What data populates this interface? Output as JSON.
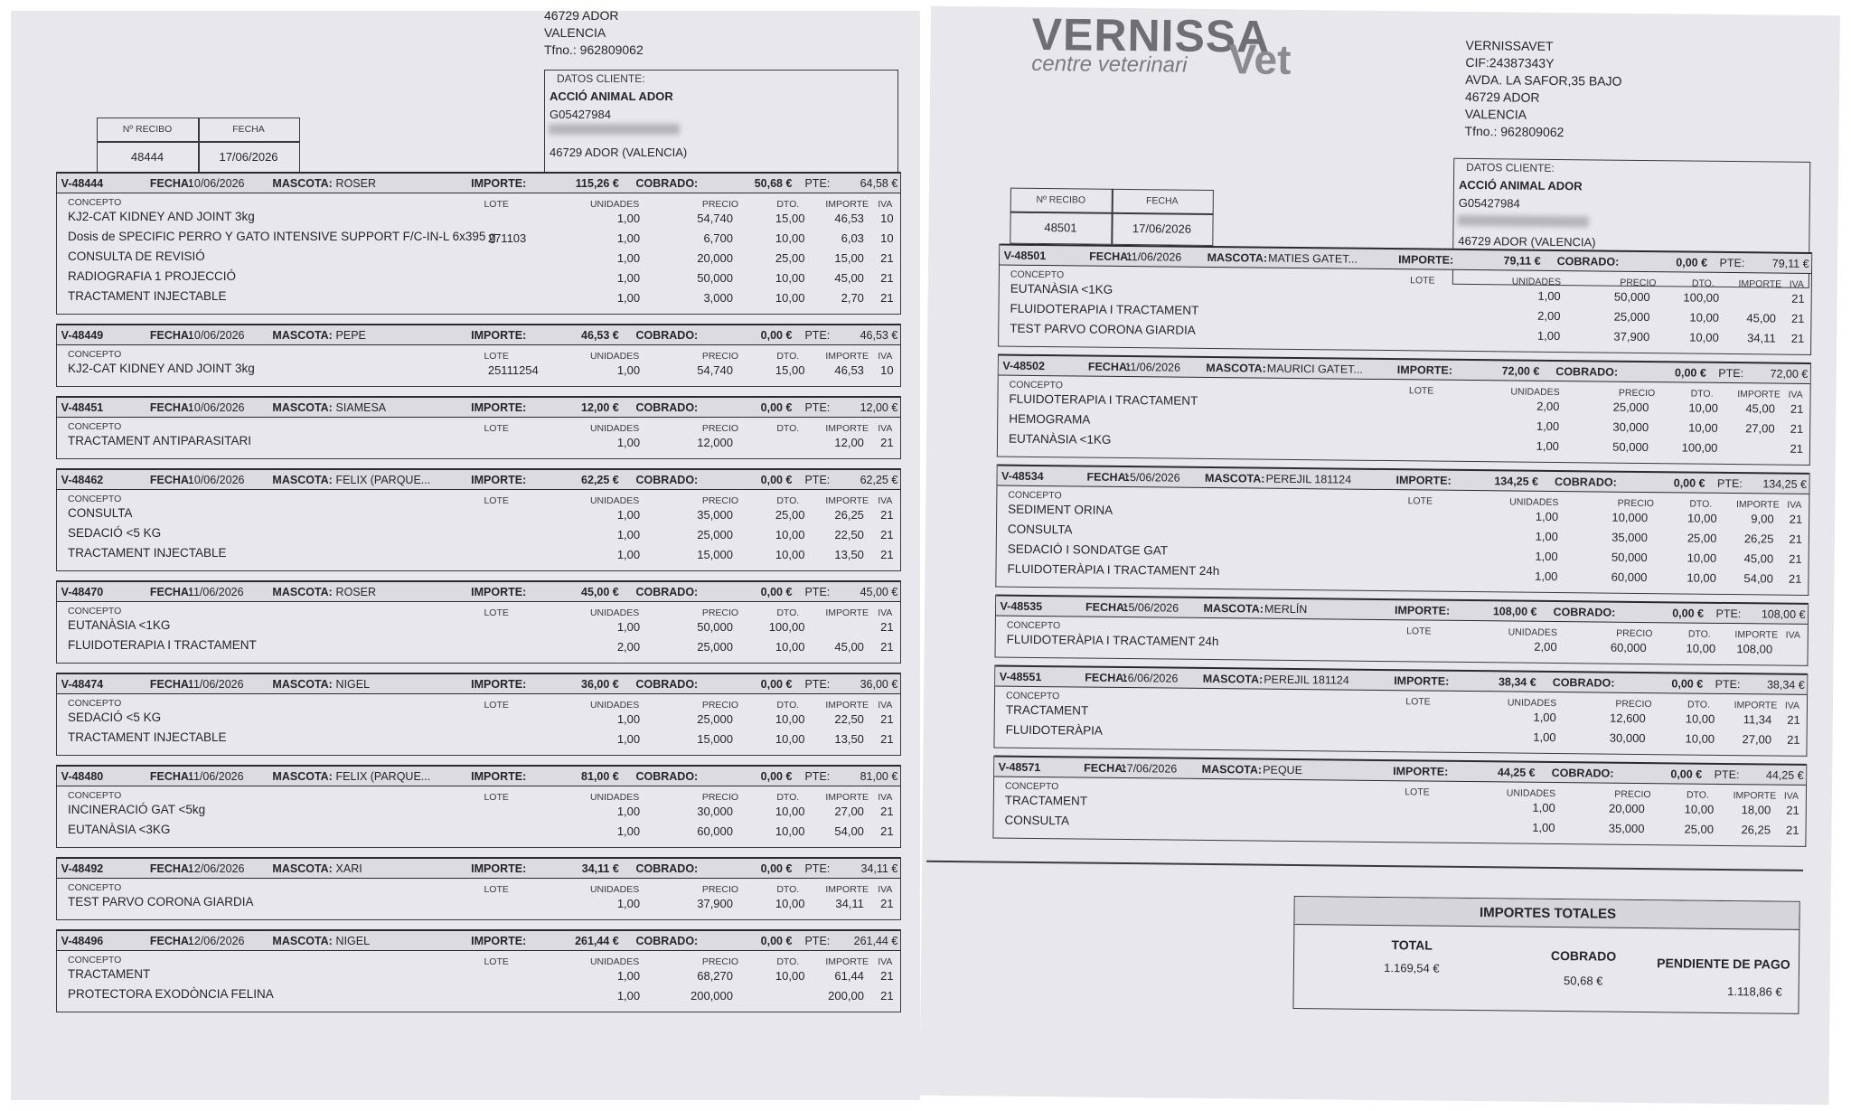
{
  "labels": {
    "concepto": "CONCEPTO",
    "lote": "LOTE",
    "unidades": "UNIDADES",
    "precio": "PRECIO",
    "dto": "DTO.",
    "importe": "IMPORTE",
    "iva": "IVA",
    "fecha": "FECHA:",
    "mascota": "MASCOTA:",
    "importe_h": "IMPORTE:",
    "cobrado": "COBRADO:",
    "pte": "PTE:",
    "recibo": "Nº RECIBO",
    "recibo_fecha": "FECHA",
    "datos_cliente": "DATOS CLIENTE:"
  },
  "client": {
    "name": "ACCIÓ ANIMAL ADOR",
    "cif": "G05427984",
    "city": "46729 ADOR (VALENCIA)"
  },
  "pages": [
    {
      "company": [
        "46729 ADOR",
        "VALENCIA",
        "Tfno.: 962809062"
      ],
      "recibo": {
        "numero": "48444",
        "fecha": "17/06/2026"
      },
      "entries": [
        {
          "code": "V-48444",
          "fecha": "10/06/2026",
          "mascota": "ROSER",
          "importe": "115,26 €",
          "cobrado": "50,68 €",
          "pte": "64,58 €",
          "conceptos": [
            "KJ2-CAT KIDNEY AND JOINT 3kg",
            "Dosis de SPECIFIC PERRO Y GATO INTENSIVE SUPPORT  F/C-IN-L 6x395 g",
            "CONSULTA DE REVISIÓ",
            "RADIOGRAFIA 1 PROJECCIÓ",
            "TRACTAMENT INJECTABLE"
          ],
          "lineas": [
            {
              "unidades": "1,00",
              "precio": "54,740",
              "dto": "15,00",
              "importe": "46,53",
              "iva": "10"
            },
            {
              "lote": "271103",
              "unidades": "1,00",
              "precio": "6,700",
              "dto": "10,00",
              "importe": "6,03",
              "iva": "10"
            },
            {
              "unidades": "1,00",
              "precio": "20,000",
              "dto": "25,00",
              "importe": "15,00",
              "iva": "21"
            },
            {
              "unidades": "1,00",
              "precio": "50,000",
              "dto": "10,00",
              "importe": "45,00",
              "iva": "21"
            },
            {
              "unidades": "1,00",
              "precio": "3,000",
              "dto": "10,00",
              "importe": "2,70",
              "iva": "21"
            }
          ]
        },
        {
          "code": "V-48449",
          "fecha": "10/06/2026",
          "mascota": "PEPE",
          "importe": "46,53 €",
          "cobrado": "0,00 €",
          "pte": "46,53 €",
          "conceptos": [
            "KJ2-CAT KIDNEY AND JOINT 3kg"
          ],
          "lineas": [
            {
              "lote": "25111254",
              "unidades": "1,00",
              "precio": "54,740",
              "dto": "15,00",
              "importe": "46,53",
              "iva": "10"
            }
          ]
        },
        {
          "code": "V-48451",
          "fecha": "10/06/2026",
          "mascota": "SIAMESA",
          "importe": "12,00 €",
          "cobrado": "0,00 €",
          "pte": "12,00 €",
          "conceptos": [
            "TRACTAMENT ANTIPARASITARI"
          ],
          "lineas": [
            {
              "unidades": "1,00",
              "precio": "12,000",
              "importe": "12,00",
              "iva": "21"
            }
          ]
        },
        {
          "code": "V-48462",
          "fecha": "10/06/2026",
          "mascota": "FELIX (PARQUE...",
          "importe": "62,25 €",
          "cobrado": "0,00 €",
          "pte": "62,25 €",
          "conceptos": [
            "CONSULTA",
            "SEDACIÓ <5 KG",
            "TRACTAMENT INJECTABLE"
          ],
          "lineas": [
            {
              "unidades": "1,00",
              "precio": "35,000",
              "dto": "25,00",
              "importe": "26,25",
              "iva": "21"
            },
            {
              "unidades": "1,00",
              "precio": "25,000",
              "dto": "10,00",
              "importe": "22,50",
              "iva": "21"
            },
            {
              "unidades": "1,00",
              "precio": "15,000",
              "dto": "10,00",
              "importe": "13,50",
              "iva": "21"
            }
          ]
        },
        {
          "code": "V-48470",
          "fecha": "11/06/2026",
          "mascota": "ROSER",
          "importe": "45,00 €",
          "cobrado": "0,00 €",
          "pte": "45,00 €",
          "conceptos": [
            "EUTANÀSIA <1KG",
            "FLUIDOTERAPIA I TRACTAMENT"
          ],
          "lineas": [
            {
              "unidades": "1,00",
              "precio": "50,000",
              "dto": "100,00",
              "iva": "21"
            },
            {
              "unidades": "2,00",
              "precio": "25,000",
              "dto": "10,00",
              "importe": "45,00",
              "iva": "21"
            }
          ]
        },
        {
          "code": "V-48474",
          "fecha": "11/06/2026",
          "mascota": "NIGEL",
          "importe": "36,00 €",
          "cobrado": "0,00 €",
          "pte": "36,00 €",
          "conceptos": [
            "SEDACIÓ <5 KG",
            "TRACTAMENT INJECTABLE"
          ],
          "lineas": [
            {
              "unidades": "1,00",
              "precio": "25,000",
              "dto": "10,00",
              "importe": "22,50",
              "iva": "21"
            },
            {
              "unidades": "1,00",
              "precio": "15,000",
              "dto": "10,00",
              "importe": "13,50",
              "iva": "21"
            }
          ]
        },
        {
          "code": "V-48480",
          "fecha": "11/06/2026",
          "mascota": "FELIX (PARQUE...",
          "importe": "81,00 €",
          "cobrado": "0,00 €",
          "pte": "81,00 €",
          "conceptos": [
            "INCINERACIÓ GAT <5kg",
            "EUTANÀSIA <3KG"
          ],
          "lineas": [
            {
              "unidades": "1,00",
              "precio": "30,000",
              "dto": "10,00",
              "importe": "27,00",
              "iva": "21"
            },
            {
              "unidades": "1,00",
              "precio": "60,000",
              "dto": "10,00",
              "importe": "54,00",
              "iva": "21"
            }
          ]
        },
        {
          "code": "V-48492",
          "fecha": "12/06/2026",
          "mascota": "XARI",
          "importe": "34,11 €",
          "cobrado": "0,00 €",
          "pte": "34,11 €",
          "conceptos": [
            "TEST PARVO CORONA GIARDIA"
          ],
          "lineas": [
            {
              "unidades": "1,00",
              "precio": "37,900",
              "dto": "10,00",
              "importe": "34,11",
              "iva": "21"
            }
          ]
        },
        {
          "code": "V-48496",
          "fecha": "12/06/2026",
          "mascota": "NIGEL",
          "importe": "261,44 €",
          "cobrado": "0,00 €",
          "pte": "261,44 €",
          "conceptos": [
            "TRACTAMENT",
            "PROTECTORA EXODÒNCIA FELINA"
          ],
          "lineas": [
            {
              "unidades": "1,00",
              "precio": "68,270",
              "dto": "10,00",
              "importe": "61,44",
              "iva": "21"
            },
            {
              "unidades": "1,00",
              "precio": "200,000",
              "importe": "200,00",
              "iva": "21"
            }
          ]
        }
      ]
    },
    {
      "logo": {
        "name": "VERNISSA",
        "suffix": "Vet",
        "tagline": "centre veterinari"
      },
      "company": [
        "VERNISSAVET",
        "CIF:24387343Y",
        "AVDA. LA SAFOR,35 BAJO",
        "46729 ADOR",
        "VALENCIA",
        "Tfno.: 962809062"
      ],
      "recibo": {
        "numero": "48501",
        "fecha": "17/06/2026"
      },
      "entries": [
        {
          "code": "V-48501",
          "fecha": "11/06/2026",
          "mascota": "MATIES GATET...",
          "importe": "79,11 €",
          "cobrado": "0,00 €",
          "pte": "79,11 €",
          "conceptos": [
            "EUTANÀSIA <1KG",
            "FLUIDOTERAPIA I TRACTAMENT",
            "TEST PARVO CORONA GIARDIA"
          ],
          "lineas": [
            {
              "unidades": "1,00",
              "precio": "50,000",
              "dto": "100,00",
              "iva": "21"
            },
            {
              "unidades": "2,00",
              "precio": "25,000",
              "dto": "10,00",
              "importe": "45,00",
              "iva": "21"
            },
            {
              "unidades": "1,00",
              "precio": "37,900",
              "dto": "10,00",
              "importe": "34,11",
              "iva": "21"
            }
          ]
        },
        {
          "code": "V-48502",
          "fecha": "11/06/2026",
          "mascota": "MAURICI GATET...",
          "importe": "72,00 €",
          "cobrado": "0,00 €",
          "pte": "72,00 €",
          "conceptos": [
            "FLUIDOTERAPIA I TRACTAMENT",
            "HEMOGRAMA",
            "EUTANÀSIA <1KG"
          ],
          "lineas": [
            {
              "unidades": "2,00",
              "precio": "25,000",
              "dto": "10,00",
              "importe": "45,00",
              "iva": "21"
            },
            {
              "unidades": "1,00",
              "precio": "30,000",
              "dto": "10,00",
              "importe": "27,00",
              "iva": "21"
            },
            {
              "unidades": "1,00",
              "precio": "50,000",
              "dto": "100,00",
              "iva": "21"
            }
          ]
        },
        {
          "code": "V-48534",
          "fecha": "15/06/2026",
          "mascota": "PEREJIL 181124",
          "importe": "134,25 €",
          "cobrado": "0,00 €",
          "pte": "134,25 €",
          "conceptos": [
            "SEDIMENT ORINA",
            "CONSULTA",
            "SEDACIÓ I SONDATGE GAT",
            "FLUIDOTERÀPIA I TRACTAMENT 24h"
          ],
          "lineas": [
            {
              "unidades": "1,00",
              "precio": "10,000",
              "dto": "10,00",
              "importe": "9,00",
              "iva": "21"
            },
            {
              "unidades": "1,00",
              "precio": "35,000",
              "dto": "25,00",
              "importe": "26,25",
              "iva": "21"
            },
            {
              "unidades": "1,00",
              "precio": "50,000",
              "dto": "10,00",
              "importe": "45,00",
              "iva": "21"
            },
            {
              "unidades": "1,00",
              "precio": "60,000",
              "dto": "10,00",
              "importe": "54,00",
              "iva": "21"
            }
          ]
        },
        {
          "code": "V-48535",
          "fecha": "15/06/2026",
          "mascota": "MERLÍN",
          "importe": "108,00 €",
          "cobrado": "0,00 €",
          "pte": "108,00 €",
          "conceptos": [
            "FLUIDOTERÀPIA I TRACTAMENT 24h"
          ],
          "lineas": [
            {
              "unidades": "2,00",
              "precio": "60,000",
              "dto": "10,00",
              "importe": "108,00"
            }
          ]
        },
        {
          "code": "V-48551",
          "fecha": "16/06/2026",
          "mascota": "PEREJIL 181124",
          "importe": "38,34 €",
          "cobrado": "0,00 €",
          "pte": "38,34 €",
          "conceptos": [
            "TRACTAMENT",
            "FLUIDOTERÀPIA"
          ],
          "lineas": [
            {
              "unidades": "1,00",
              "precio": "12,600",
              "dto": "10,00",
              "importe": "11,34",
              "iva": "21"
            },
            {
              "unidades": "1,00",
              "precio": "30,000",
              "dto": "10,00",
              "importe": "27,00",
              "iva": "21"
            }
          ]
        },
        {
          "code": "V-48571",
          "fecha": "17/06/2026",
          "mascota": "PEQUE",
          "importe": "44,25 €",
          "cobrado": "0,00 €",
          "pte": "44,25 €",
          "conceptos": [
            "TRACTAMENT",
            "CONSULTA"
          ],
          "lineas": [
            {
              "unidades": "1,00",
              "precio": "20,000",
              "dto": "10,00",
              "importe": "18,00",
              "iva": "21"
            },
            {
              "unidades": "1,00",
              "precio": "35,000",
              "dto": "25,00",
              "importe": "26,25",
              "iva": "21"
            }
          ]
        }
      ],
      "totals": {
        "title": "IMPORTES TOTALES",
        "total_label": "TOTAL",
        "total": "1.169,54 €",
        "cobrado_label": "COBRADO",
        "cobrado": "50,68 €",
        "pendiente_label": "PENDIENTE DE PAGO",
        "pendiente": "1.118,86 €"
      }
    }
  ]
}
